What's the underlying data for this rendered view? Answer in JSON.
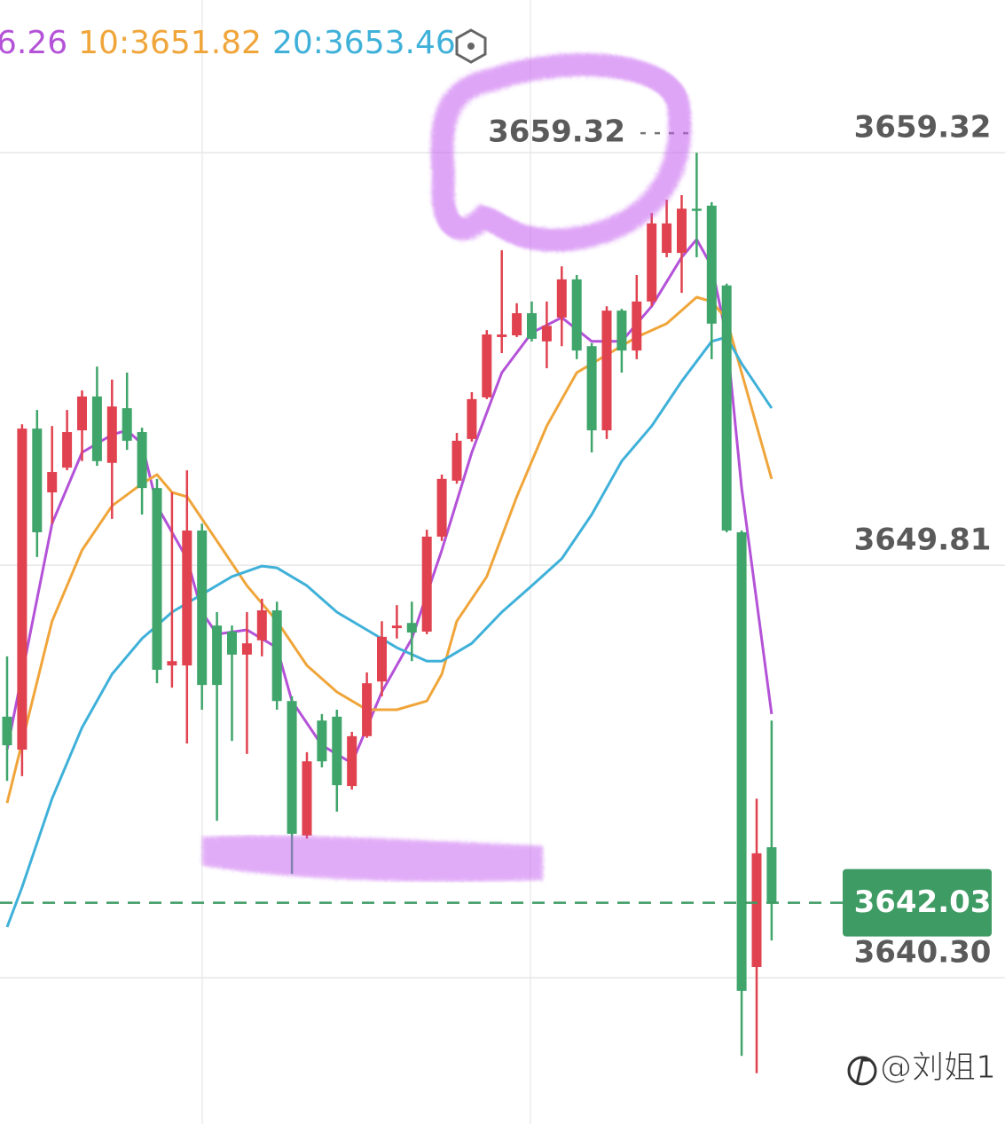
{
  "chart_data": {
    "type": "candlestick",
    "up_color": "#e0424f",
    "down_color": "#3fa56a",
    "grid": true,
    "ylim": [
      3636.93,
      3662.84
    ],
    "yticks": [
      {
        "value": 3640.3,
        "label": "3640.30"
      },
      3649.81,
      3659.32
    ],
    "open": [
      3646.32,
      3645.56,
      3652.96,
      3651.49,
      3652.06,
      3652.92,
      3653.7,
      3652.17,
      3653.43,
      3652.88,
      3651.59,
      3647.5,
      3647.5,
      3650.61,
      3648.42,
      3648.28,
      3647.75,
      3648.08,
      3648.77,
      3646.68,
      3643.58,
      3646.23,
      3646.32,
      3644.72,
      3645.87,
      3647.13,
      3648.36,
      3648.48,
      3648.28,
      3650.47,
      3651.76,
      3652.72,
      3653.68,
      3655.07,
      3655.11,
      3655.62,
      3654.97,
      3655.52,
      3656.4,
      3654.86,
      3652.92,
      3655.68,
      3654.76,
      3655.89,
      3657.01,
      3657.01,
      3658.03,
      3658.1,
      3656.26,
      3650.57,
      3640.55,
      3643.31
    ],
    "high": [
      3647.71,
      3653.06,
      3653.39,
      3653.02,
      3653.39,
      3653.84,
      3654.39,
      3654.09,
      3654.25,
      3652.98,
      3651.8,
      3651.49,
      3652.0,
      3650.77,
      3648.73,
      3648.42,
      3648.73,
      3649.04,
      3648.97,
      3646.79,
      3645.5,
      3646.38,
      3646.48,
      3645.97,
      3647.34,
      3648.52,
      3648.89,
      3648.97,
      3650.63,
      3651.9,
      3652.86,
      3653.8,
      3655.23,
      3657.07,
      3655.85,
      3655.89,
      3655.89,
      3656.7,
      3656.5,
      3654.93,
      3655.78,
      3655.72,
      3656.5,
      3657.93,
      3658.24,
      3658.34,
      3659.32,
      3658.18,
      3656.3,
      3650.61,
      3644.43,
      3646.23
    ],
    "low": [
      3644.84,
      3644.95,
      3650.0,
      3650.77,
      3652.0,
      3652.21,
      3652.1,
      3650.88,
      3652.47,
      3650.98,
      3647.09,
      3646.99,
      3645.7,
      3646.48,
      3643.92,
      3645.76,
      3645.46,
      3647.71,
      3646.48,
      3642.7,
      3643.51,
      3645.15,
      3644.13,
      3644.64,
      3645.83,
      3646.79,
      3648.12,
      3647.6,
      3648.22,
      3650.37,
      3651.69,
      3652.66,
      3653.64,
      3654.7,
      3655.07,
      3654.97,
      3654.35,
      3654.86,
      3654.56,
      3652.41,
      3652.72,
      3654.25,
      3654.56,
      3655.78,
      3656.91,
      3656.09,
      3656.91,
      3654.56,
      3650.57,
      3638.5,
      3638.1,
      3641.16
    ],
    "close": [
      3645.66,
      3652.96,
      3650.57,
      3651.96,
      3652.88,
      3653.7,
      3652.21,
      3653.47,
      3652.68,
      3651.59,
      3647.4,
      3647.6,
      3650.61,
      3647.05,
      3647.05,
      3647.75,
      3648.01,
      3648.77,
      3646.68,
      3643.62,
      3645.29,
      3645.29,
      3644.74,
      3645.87,
      3647.09,
      3648.16,
      3648.42,
      3648.26,
      3650.47,
      3651.8,
      3652.68,
      3653.64,
      3655.13,
      3655.13,
      3655.62,
      3655.03,
      3655.33,
      3656.4,
      3654.76,
      3652.92,
      3655.68,
      3654.76,
      3655.89,
      3657.69,
      3657.69,
      3658.03,
      3657.99,
      3655.38,
      3650.61,
      3640.0,
      3643.17,
      3642.03
    ],
    "series": [
      {
        "name": "6.26",
        "color": "#b452d8",
        "x": [
          0,
          1,
          3,
          5,
          7,
          8,
          9,
          10,
          12,
          13,
          14,
          16,
          18,
          19,
          21,
          23,
          25,
          27,
          29,
          31,
          33,
          35,
          37,
          39,
          41,
          43,
          45,
          46,
          47,
          48,
          49,
          51
        ],
        "values": [
          3645.56,
          3647.3,
          3650.77,
          3652.41,
          3652.82,
          3652.92,
          3652.61,
          3651.18,
          3649.96,
          3648.73,
          3648.22,
          3648.32,
          3647.91,
          3646.68,
          3645.66,
          3645.25,
          3646.89,
          3648.12,
          3650.16,
          3652.41,
          3654.25,
          3655.17,
          3655.52,
          3654.97,
          3654.97,
          3655.78,
          3656.91,
          3657.32,
          3656.7,
          3655.07,
          3651.59,
          3646.38
        ]
      },
      {
        "name": "10:3651.82",
        "color": "#f0a53a",
        "x": [
          0,
          3,
          5,
          7,
          9,
          10,
          11,
          12,
          14,
          16,
          18,
          20,
          22,
          24,
          26,
          28,
          29,
          30,
          32,
          34,
          36,
          38,
          40,
          42,
          44,
          46,
          47,
          48,
          49,
          51
        ],
        "values": [
          3644.33,
          3648.52,
          3650.16,
          3651.18,
          3651.69,
          3651.9,
          3651.49,
          3651.39,
          3650.37,
          3649.34,
          3648.52,
          3647.5,
          3646.89,
          3646.48,
          3646.48,
          3646.68,
          3647.3,
          3648.52,
          3649.55,
          3651.39,
          3653.02,
          3654.25,
          3654.66,
          3655.07,
          3655.38,
          3655.99,
          3655.89,
          3655.48,
          3654.25,
          3651.8
        ]
      },
      {
        "name": "20:3653.46",
        "color": "#3fb1d9",
        "x": [
          0,
          1,
          3,
          5,
          7,
          9,
          10,
          11,
          13,
          15,
          17,
          18,
          20,
          22,
          24,
          26,
          28,
          29,
          31,
          33,
          35,
          37,
          39,
          41,
          43,
          45,
          47,
          48,
          49,
          51
        ],
        "values": [
          3641.47,
          3642.39,
          3644.43,
          3646.07,
          3647.3,
          3648.12,
          3648.42,
          3648.73,
          3649.14,
          3649.55,
          3649.79,
          3649.75,
          3649.34,
          3648.73,
          3648.32,
          3647.91,
          3647.6,
          3647.6,
          3648.01,
          3648.73,
          3649.34,
          3649.96,
          3650.98,
          3652.21,
          3653.02,
          3654.05,
          3654.97,
          3655.07,
          3654.46,
          3653.43
        ]
      }
    ],
    "last_price_color": "#3d9b63",
    "watermark": "@刘姐1"
  }
}
